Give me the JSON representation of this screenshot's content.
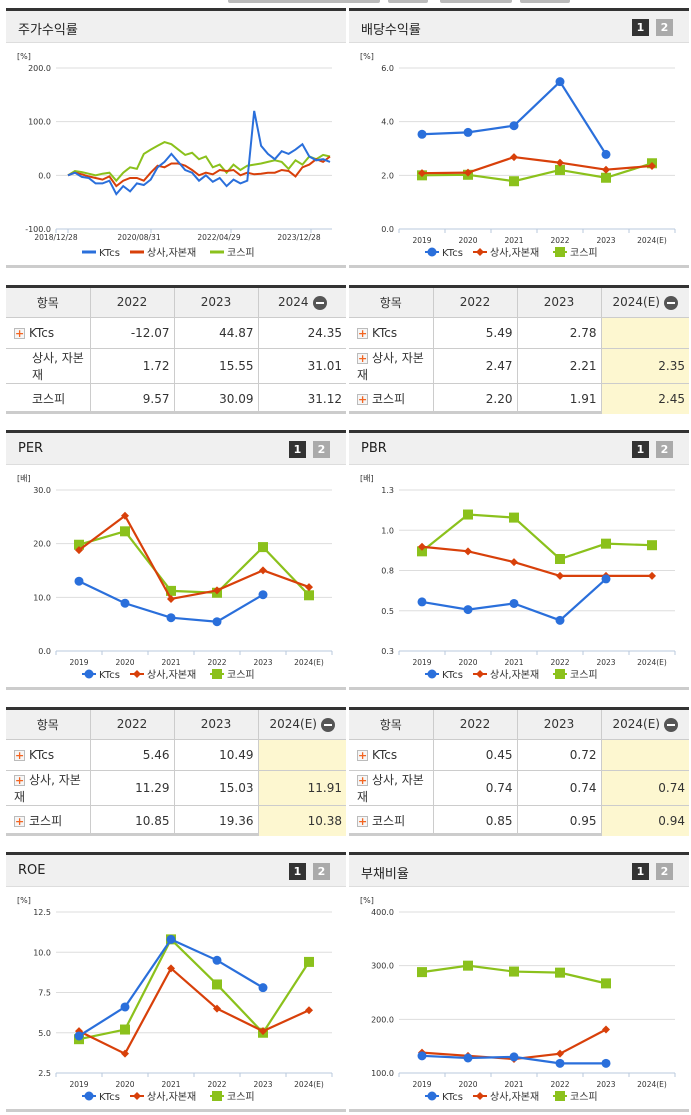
{
  "series_names": [
    "KTcs",
    "상사,자본재",
    "코스피"
  ],
  "colors": {
    "ktcs": "#2a6fdb",
    "sector": "#d8400a",
    "kospi": "#8bc11c"
  },
  "pager": {
    "p1": "1",
    "p2": "2"
  },
  "panels": {
    "stock_return": {
      "title": "주가수익률",
      "unit": "[%]"
    },
    "dividend": {
      "title": "배당수익률",
      "unit": "[%]"
    },
    "per": {
      "title": "PER",
      "unit": "[배]"
    },
    "pbr": {
      "title": "PBR",
      "unit": "[배]"
    },
    "roe": {
      "title": "ROE",
      "unit": "[%]"
    },
    "debt": {
      "title": "부채비율",
      "unit": "[%]"
    }
  },
  "tables": {
    "stock_return": {
      "headers": [
        "항목",
        "2022",
        "2023",
        "2024"
      ],
      "rows": [
        {
          "name": "KTcs",
          "icon": true,
          "values": [
            "-12.07",
            "44.87",
            "24.35"
          ]
        },
        {
          "name": "상사, 자본재",
          "icon": false,
          "values": [
            "1.72",
            "15.55",
            "31.01"
          ]
        },
        {
          "name": "코스피",
          "icon": false,
          "values": [
            "9.57",
            "30.09",
            "31.12"
          ]
        }
      ]
    },
    "dividend": {
      "headers": [
        "항목",
        "2022",
        "2023",
        "2024(E)"
      ],
      "rows": [
        {
          "name": "KTcs",
          "icon": true,
          "values": [
            "5.49",
            "2.78",
            ""
          ]
        },
        {
          "name": "상사, 자본재",
          "icon": true,
          "values": [
            "2.47",
            "2.21",
            "2.35"
          ]
        },
        {
          "name": "코스피",
          "icon": true,
          "values": [
            "2.20",
            "1.91",
            "2.45"
          ]
        }
      ]
    },
    "per": {
      "headers": [
        "항목",
        "2022",
        "2023",
        "2024(E)"
      ],
      "rows": [
        {
          "name": "KTcs",
          "icon": true,
          "values": [
            "5.46",
            "10.49",
            ""
          ]
        },
        {
          "name": "상사, 자본재",
          "icon": true,
          "values": [
            "11.29",
            "15.03",
            "11.91"
          ]
        },
        {
          "name": "코스피",
          "icon": true,
          "values": [
            "10.85",
            "19.36",
            "10.38"
          ]
        }
      ]
    },
    "pbr": {
      "headers": [
        "항목",
        "2022",
        "2023",
        "2024(E)"
      ],
      "rows": [
        {
          "name": "KTcs",
          "icon": true,
          "values": [
            "0.45",
            "0.72",
            ""
          ]
        },
        {
          "name": "상사, 자본재",
          "icon": true,
          "values": [
            "0.74",
            "0.74",
            "0.74"
          ]
        },
        {
          "name": "코스피",
          "icon": true,
          "values": [
            "0.85",
            "0.95",
            "0.94"
          ]
        }
      ]
    }
  },
  "chart_data": [
    {
      "type": "line",
      "title": "주가수익률",
      "ylabel": "[%]",
      "ylim": [
        -100,
        200
      ],
      "yticks": [
        "200.0",
        "100.0",
        "0.0",
        "-100.0"
      ],
      "xticks": [
        "2018/12/28",
        "2020/08/31",
        "2022/04/29",
        "2023/12/28"
      ],
      "series": [
        {
          "name": "KTcs",
          "values": [
            0,
            5,
            -3,
            -5,
            -15,
            -15,
            -10,
            -35,
            -20,
            -30,
            -15,
            -18,
            -8,
            15,
            25,
            40,
            25,
            10,
            5,
            -10,
            0,
            -12,
            -5,
            -20,
            -8,
            -15,
            -10,
            120,
            55,
            40,
            30,
            45,
            40,
            48,
            58,
            35,
            28,
            30,
            25
          ]
        },
        {
          "name": "상사,자본재",
          "values": [
            0,
            5,
            2,
            -2,
            -5,
            -8,
            -2,
            -20,
            -10,
            -5,
            -5,
            -10,
            5,
            18,
            15,
            22,
            22,
            18,
            10,
            0,
            5,
            2,
            10,
            8,
            10,
            0,
            5,
            2,
            3,
            5,
            5,
            10,
            8,
            -2,
            15,
            20,
            30,
            25,
            35
          ]
        },
        {
          "name": "코스피",
          "values": [
            0,
            8,
            6,
            3,
            0,
            3,
            5,
            -10,
            5,
            15,
            12,
            40,
            48,
            55,
            62,
            58,
            48,
            38,
            42,
            30,
            35,
            15,
            20,
            5,
            20,
            10,
            18,
            20,
            22,
            25,
            28,
            25,
            12,
            28,
            20,
            35,
            30,
            38,
            35
          ]
        }
      ]
    },
    {
      "type": "line",
      "title": "배당수익률",
      "ylabel": "[%]",
      "ylim": [
        0,
        6
      ],
      "yticks": [
        "6.0",
        "4.0",
        "2.0",
        "0.0"
      ],
      "categories": [
        "2019",
        "2020",
        "2021",
        "2022",
        "2023",
        "2024(E)"
      ],
      "series": [
        {
          "name": "KTcs",
          "values": [
            3.53,
            3.6,
            3.85,
            5.49,
            2.78,
            null
          ]
        },
        {
          "name": "상사,자본재",
          "values": [
            2.08,
            2.1,
            2.68,
            2.47,
            2.21,
            2.35
          ]
        },
        {
          "name": "코스피",
          "values": [
            2.0,
            2.02,
            1.78,
            2.2,
            1.91,
            2.45
          ]
        }
      ]
    },
    {
      "type": "line",
      "title": "PER",
      "ylabel": "[배]",
      "ylim": [
        0,
        30
      ],
      "yticks": [
        "30.0",
        "20.0",
        "10.0",
        "0.0"
      ],
      "categories": [
        "2019",
        "2020",
        "2021",
        "2022",
        "2023",
        "2024(E)"
      ],
      "series": [
        {
          "name": "KTcs",
          "values": [
            13.0,
            8.9,
            6.2,
            5.46,
            10.49,
            null
          ]
        },
        {
          "name": "상사,자본재",
          "values": [
            18.8,
            25.2,
            9.7,
            11.29,
            15.03,
            11.91
          ]
        },
        {
          "name": "코스피",
          "values": [
            19.8,
            22.3,
            11.2,
            10.85,
            19.36,
            10.38
          ]
        }
      ]
    },
    {
      "type": "line",
      "title": "PBR",
      "ylabel": "[배]",
      "ylim": [
        0.25,
        1.3
      ],
      "yticks": [
        "1.3",
        "1.0",
        "0.8",
        "0.5",
        "0.3"
      ],
      "categories": [
        "2019",
        "2020",
        "2021",
        "2022",
        "2023",
        "2024(E)"
      ],
      "series": [
        {
          "name": "KTcs",
          "values": [
            0.57,
            0.52,
            0.56,
            0.45,
            0.72,
            null
          ]
        },
        {
          "name": "상사,자본재",
          "values": [
            0.93,
            0.9,
            0.83,
            0.74,
            0.74,
            0.74
          ]
        },
        {
          "name": "코스피",
          "values": [
            0.9,
            1.14,
            1.12,
            0.85,
            0.95,
            0.94
          ]
        }
      ]
    },
    {
      "type": "line",
      "title": "ROE",
      "ylabel": "[%]",
      "ylim": [
        2.5,
        12.5
      ],
      "yticks": [
        "12.5",
        "10.0",
        "7.5",
        "5.0",
        "2.5"
      ],
      "categories": [
        "2019",
        "2020",
        "2021",
        "2022",
        "2023",
        "2024(E)"
      ],
      "series": [
        {
          "name": "KTcs",
          "values": [
            4.8,
            6.6,
            10.8,
            9.5,
            7.8,
            null
          ]
        },
        {
          "name": "상사,자본재",
          "values": [
            5.1,
            3.7,
            9.0,
            6.5,
            5.1,
            6.4
          ]
        },
        {
          "name": "코스피",
          "values": [
            4.6,
            5.2,
            10.8,
            8.0,
            5.0,
            9.4
          ]
        }
      ]
    },
    {
      "type": "line",
      "title": "부채비율",
      "ylabel": "[%]",
      "ylim": [
        100,
        400
      ],
      "yticks": [
        "400.0",
        "300.0",
        "200.0",
        "100.0"
      ],
      "categories": [
        "2019",
        "2020",
        "2021",
        "2022",
        "2023",
        "2024(E)"
      ],
      "series": [
        {
          "name": "KTcs",
          "values": [
            132,
            128,
            130,
            118,
            118,
            null
          ]
        },
        {
          "name": "상사,자본재",
          "values": [
            138,
            132,
            126,
            136,
            181,
            null
          ]
        },
        {
          "name": "코스피",
          "values": [
            288,
            300,
            289,
            287,
            267,
            null
          ]
        }
      ]
    }
  ]
}
